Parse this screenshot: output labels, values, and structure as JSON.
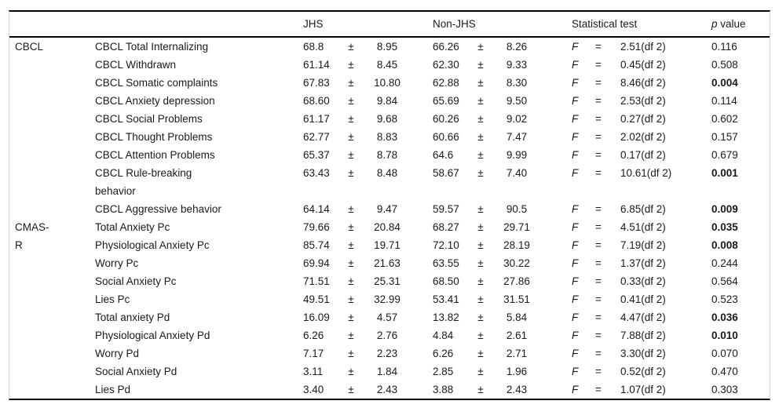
{
  "table": {
    "header": {
      "jhs": "JHS",
      "non_jhs": "Non-JHS",
      "statistical_test": "Statistical test",
      "p_italic": "p",
      "p_rest": "value"
    },
    "symbols": {
      "plus_minus": "±",
      "f_label": "F",
      "equals": "="
    },
    "colors": {
      "rule": "#000000",
      "faint_grid": "#d6d6d6",
      "text": "#1a1a1a"
    },
    "rows": [
      {
        "group": "CBCL",
        "scale": "CBCL Total Internalizing",
        "jhs_mean": "68.8",
        "jhs_sd": "8.95",
        "njhs_mean": "66.26",
        "njhs_sd": "8.26",
        "stat": "2.51(df 2)",
        "p": "0.116",
        "p_bold": false
      },
      {
        "group": "",
        "scale": "CBCL Withdrawn",
        "jhs_mean": "61.14",
        "jhs_sd": "8.45",
        "njhs_mean": "62.30",
        "njhs_sd": "9.33",
        "stat": "0.45(df 2)",
        "p": "0.508",
        "p_bold": false
      },
      {
        "group": "",
        "scale": "CBCL Somatic complaints",
        "jhs_mean": "67.83",
        "jhs_sd": "10.80",
        "njhs_mean": "62.88",
        "njhs_sd": "8.30",
        "stat": "8.46(df 2)",
        "p": "0.004",
        "p_bold": true
      },
      {
        "group": "",
        "scale": "CBCL Anxiety depression",
        "jhs_mean": "68.60",
        "jhs_sd": "9.84",
        "njhs_mean": "65.69",
        "njhs_sd": "9.50",
        "stat": "2.53(df 2)",
        "p": "0.114",
        "p_bold": false
      },
      {
        "group": "",
        "scale": "CBCL Social Problems",
        "jhs_mean": "61.17",
        "jhs_sd": "9.68",
        "njhs_mean": "60.26",
        "njhs_sd": "9.02",
        "stat": "0.27(df 2)",
        "p": "0.602",
        "p_bold": false
      },
      {
        "group": "",
        "scale": "CBCL Thought Problems",
        "jhs_mean": "62.77",
        "jhs_sd": "8.83",
        "njhs_mean": "60.66",
        "njhs_sd": "7.47",
        "stat": "2.02(df 2)",
        "p": "0.157",
        "p_bold": false
      },
      {
        "group": "",
        "scale": "CBCL Attention Problems",
        "jhs_mean": "65.37",
        "jhs_sd": "8.78",
        "njhs_mean": "64.6",
        "njhs_sd": "9.99",
        "stat": "0.17(df 2)",
        "p": "0.679",
        "p_bold": false
      },
      {
        "group": "",
        "scale": "CBCL Rule-breaking\nbehavior",
        "jhs_mean": "63.43",
        "jhs_sd": "8.48",
        "njhs_mean": "58.67",
        "njhs_sd": "7.40",
        "stat": "10.61(df 2)",
        "p": "0.001",
        "p_bold": true
      },
      {
        "group": "",
        "scale": "CBCL Aggressive behavior",
        "jhs_mean": "64.14",
        "jhs_sd": "9.47",
        "njhs_mean": "59.57",
        "njhs_sd": "90.5",
        "stat": "6.85(df 2)",
        "p": "0.009",
        "p_bold": true
      },
      {
        "group": "CMAS-",
        "scale": "Total Anxiety Pc",
        "jhs_mean": "79.66",
        "jhs_sd": "20.84",
        "njhs_mean": "68.27",
        "njhs_sd": "29.71",
        "stat": "4.51(df 2)",
        "p": "0.035",
        "p_bold": true
      },
      {
        "group": "R",
        "scale": "Physiological Anxiety Pc",
        "jhs_mean": "85.74",
        "jhs_sd": "19.71",
        "njhs_mean": "72.10",
        "njhs_sd": "28.19",
        "stat": "7.19(df 2)",
        "p": "0.008",
        "p_bold": true
      },
      {
        "group": "",
        "scale": "Worry Pc",
        "jhs_mean": "69.94",
        "jhs_sd": "21.63",
        "njhs_mean": "63.55",
        "njhs_sd": "30.22",
        "stat": "1.37(df 2)",
        "p": "0.244",
        "p_bold": false
      },
      {
        "group": "",
        "scale": "Social Anxiety Pc",
        "jhs_mean": "71.51",
        "jhs_sd": "25.31",
        "njhs_mean": "68.50",
        "njhs_sd": "27.86",
        "stat": "0.33(df 2)",
        "p": "0.564",
        "p_bold": false
      },
      {
        "group": "",
        "scale": "Lies Pc",
        "jhs_mean": "49.51",
        "jhs_sd": "32.99",
        "njhs_mean": "53.41",
        "njhs_sd": "31.51",
        "stat": "0.41(df 2)",
        "p": "0.523",
        "p_bold": false
      },
      {
        "group": "",
        "scale": "Total anxiety Pd",
        "jhs_mean": "16.09",
        "jhs_sd": "4.57",
        "njhs_mean": "13.82",
        "njhs_sd": "5.84",
        "stat": "4.47(df 2)",
        "p": "0.036",
        "p_bold": true
      },
      {
        "group": "",
        "scale": "Physiological Anxiety Pd",
        "jhs_mean": "6.26",
        "jhs_sd": "2.76",
        "njhs_mean": "4.84",
        "njhs_sd": "2.61",
        "stat": "7.88(df 2)",
        "p": "0.010",
        "p_bold": true
      },
      {
        "group": "",
        "scale": "Worry Pd",
        "jhs_mean": "7.17",
        "jhs_sd": "2.23",
        "njhs_mean": "6.26",
        "njhs_sd": "2.71",
        "stat": "3.30(df 2)",
        "p": "0.070",
        "p_bold": false
      },
      {
        "group": "",
        "scale": "Social Anxiety Pd",
        "jhs_mean": "3.11",
        "jhs_sd": "1.84",
        "njhs_mean": "2.85",
        "njhs_sd": "1.96",
        "stat": "0.52(df 2)",
        "p": "0.470",
        "p_bold": false
      },
      {
        "group": "",
        "scale": "Lies Pd",
        "jhs_mean": "3.40",
        "jhs_sd": "2.43",
        "njhs_mean": "3.88",
        "njhs_sd": "2.43",
        "stat": "1.07(df 2)",
        "p": "0.303",
        "p_bold": false
      }
    ]
  }
}
